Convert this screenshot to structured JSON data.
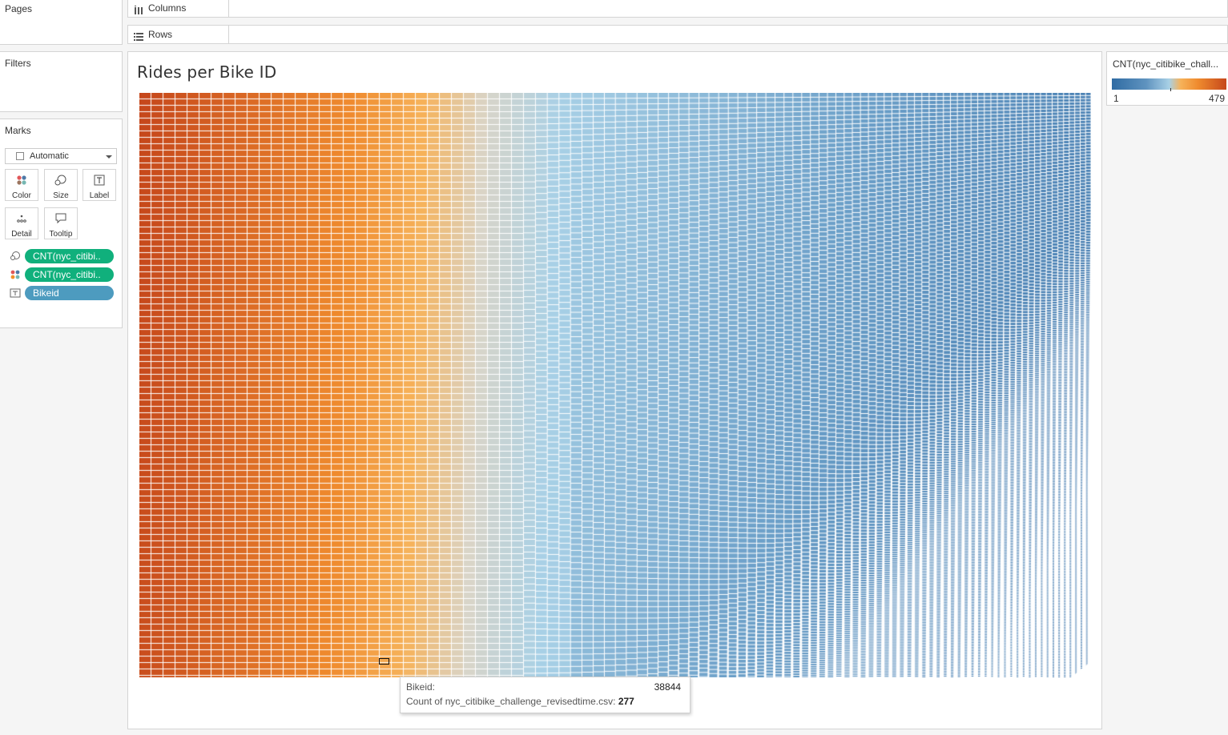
{
  "shelves": {
    "columns_label": "Columns",
    "rows_label": "Rows"
  },
  "left_cards": {
    "pages_title": "Pages",
    "filters_title": "Filters",
    "marks_title": "Marks"
  },
  "marks": {
    "mark_type": "Automatic",
    "buttons": {
      "color": "Color",
      "size": "Size",
      "label": "Label",
      "detail": "Detail",
      "tooltip": "Tooltip"
    },
    "pills": [
      {
        "icon": "size-icon",
        "text": "CNT(nyc_citibi..",
        "color": "#10b07c"
      },
      {
        "icon": "color-icon",
        "text": "CNT(nyc_citibi..",
        "color": "#10b07c"
      },
      {
        "icon": "label-icon",
        "text": "Bikeid",
        "color": "#4d9bbf"
      }
    ]
  },
  "view": {
    "title": "Rides per Bike ID"
  },
  "legend": {
    "title": "CNT(nyc_citibike_chall...",
    "min": "1",
    "max": "479"
  },
  "tooltip": {
    "field1_label": "Bikeid:",
    "field1_value": "38844",
    "field2_label": "Count of nyc_citibike_challenge_revisedtime.csv:",
    "field2_value": "277"
  },
  "chart_data": {
    "type": "treemap",
    "measure": "CNT(nyc_citibike_challenge_revisedtime.csv)",
    "dimension": "Bikeid",
    "color_range": [
      1,
      479
    ],
    "color_scheme": [
      "#2f6ba3",
      "#a8d0e6",
      "#f6b25a",
      "#c6481b"
    ],
    "highlighted": {
      "Bikeid": "38844",
      "count": 277
    }
  }
}
